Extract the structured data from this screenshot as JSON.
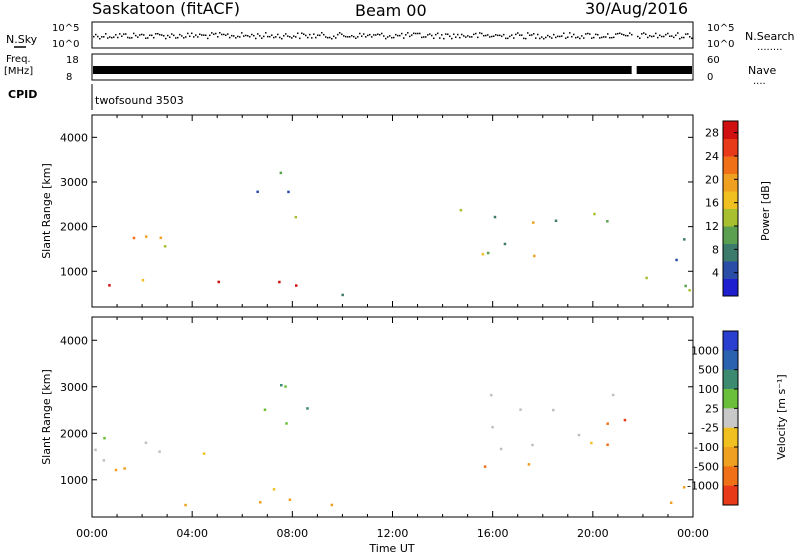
{
  "header": {
    "station": "Saskatoon (fitACF)",
    "beam": "Beam 00",
    "date": "30/Aug/2016"
  },
  "aux": {
    "nsky_label": "N.Sky",
    "nsearch_label": "N.Search",
    "nsearch_dots": "........",
    "noise_ticks": [
      "10^5",
      "10^0"
    ],
    "freq_label_1": "Freq.",
    "freq_label_2": "[MHz]",
    "freq_ticks": [
      "18",
      "8"
    ],
    "nave_label": "Nave",
    "nave_dots": "....",
    "nave_ticks": [
      "60",
      "0"
    ],
    "cpid_label": "CPID",
    "cpid_value": "twofsound 3503"
  },
  "chart_data": [
    {
      "type": "heatmap",
      "panel": "power",
      "xlabel": "Time UT",
      "ylabel": "Slant Range [km]",
      "x_ticks": [
        "00:00",
        "04:00",
        "08:00",
        "12:00",
        "16:00",
        "20:00",
        "00:00"
      ],
      "xlim": [
        0,
        24
      ],
      "ylim": [
        200,
        4500
      ],
      "y_ticks": [
        1000,
        2000,
        3000,
        4000
      ],
      "colorbar_label": "Power [dB]",
      "colorbar_ticks": [
        4,
        8,
        12,
        16,
        20,
        24,
        28
      ],
      "colorbar_range": [
        0,
        30
      ],
      "colormap": [
        "#1f1fd0",
        "#2a4ea8",
        "#3c7a6c",
        "#5aa050",
        "#a8c030",
        "#f0c020",
        "#f0a020",
        "#f07018",
        "#e83a18",
        "#d01010"
      ],
      "data_gaps_hours": [
        [
          21.55,
          21.75
        ]
      ],
      "echo_regions": [
        {
          "t": [
            0.0,
            4.0
          ],
          "range": [
            1300,
            2300
          ],
          "power": 16
        },
        {
          "t": [
            0.5,
            3.5
          ],
          "range": [
            600,
            1300
          ],
          "power": 24
        },
        {
          "t": [
            4.5,
            9.5
          ],
          "range": [
            250,
            800
          ],
          "power": 26
        },
        {
          "t": [
            6.5,
            8.5
          ],
          "range": [
            1600,
            3400
          ],
          "power": 10
        },
        {
          "t": [
            9.5,
            12.5
          ],
          "range": [
            250,
            500
          ],
          "power": 8
        },
        {
          "t": [
            14.5,
            21.5
          ],
          "range": [
            1300,
            2600
          ],
          "power": 14
        },
        {
          "t": [
            21.8,
            24.0
          ],
          "range": [
            500,
            2400
          ],
          "power": 12
        }
      ]
    },
    {
      "type": "heatmap",
      "panel": "velocity",
      "xlabel": "Time UT",
      "ylabel": "Slant Range [km]",
      "x_ticks": [
        "00:00",
        "04:00",
        "08:00",
        "12:00",
        "16:00",
        "20:00",
        "00:00"
      ],
      "xlim": [
        0,
        24
      ],
      "ylim": [
        200,
        4500
      ],
      "y_ticks": [
        1000,
        2000,
        3000,
        4000
      ],
      "colorbar_label": "Velocity [m s⁻¹]",
      "colorbar_ticks": [
        1000,
        500,
        100,
        25,
        -25,
        -100,
        -500,
        -1000
      ],
      "colormap": [
        "#2a3ed0",
        "#2a62b0",
        "#3c8a70",
        "#6ac03a",
        "#c8c8c8",
        "#f0c020",
        "#f0a020",
        "#f07018",
        "#e83a18"
      ],
      "ground_scatter_color": "#bfbfbf",
      "data_gaps_hours": [
        [
          21.55,
          21.75
        ]
      ],
      "echo_regions": [
        {
          "t": [
            0.0,
            5.5
          ],
          "range": [
            1400,
            2400
          ],
          "velocity": 0
        },
        {
          "t": [
            0.3,
            3.0
          ],
          "range": [
            500,
            1300
          ],
          "velocity": -300
        },
        {
          "t": [
            3.0,
            10.5
          ],
          "range": [
            250,
            900
          ],
          "velocity": -120
        },
        {
          "t": [
            6.5,
            9.0
          ],
          "range": [
            1500,
            3400
          ],
          "velocity": 80
        },
        {
          "t": [
            14.5,
            21.0
          ],
          "range": [
            1600,
            2900
          ],
          "velocity": 0
        },
        {
          "t": [
            17.8,
            21.5
          ],
          "range": [
            1700,
            2500
          ],
          "velocity": -900
        },
        {
          "t": [
            15.0,
            17.5
          ],
          "range": [
            1000,
            1700
          ],
          "velocity": -400
        },
        {
          "t": [
            21.8,
            24.0
          ],
          "range": [
            500,
            1300
          ],
          "velocity": -300
        }
      ]
    }
  ]
}
